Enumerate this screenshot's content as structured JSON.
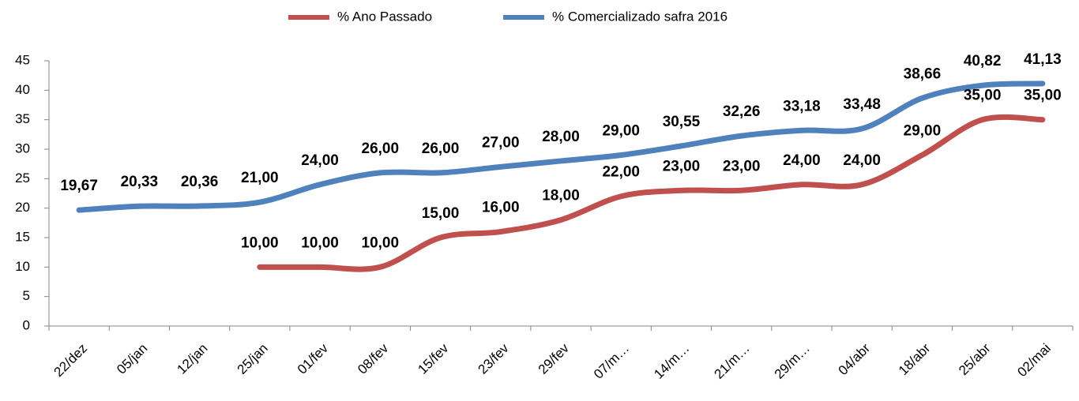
{
  "chart_data": {
    "type": "line",
    "categories": [
      "22/dez",
      "05/jan",
      "12/jan",
      "25/jan",
      "01/fev",
      "08/fev",
      "15/fev",
      "23/fev",
      "29/fev",
      "07/m…",
      "14/m…",
      "21/m…",
      "29/m…",
      "04/abr",
      "18/abr",
      "25/abr",
      "02/mai"
    ],
    "series": [
      {
        "name": "% Ano Passado",
        "color": "#c0504d",
        "values": [
          null,
          null,
          null,
          10,
          10,
          10,
          15,
          16,
          18,
          22,
          23,
          23,
          24,
          24,
          29,
          35,
          35
        ],
        "value_labels": [
          null,
          null,
          null,
          "10,00",
          "10,00",
          "10,00",
          "15,00",
          "16,00",
          "18,00",
          "22,00",
          "23,00",
          "23,00",
          "24,00",
          "24,00",
          "29,00",
          "35,00",
          "35,00"
        ]
      },
      {
        "name": "% Comercializado safra 2016",
        "color": "#4f81bd",
        "values": [
          19.67,
          20.33,
          20.36,
          21,
          24,
          26,
          26,
          27,
          28,
          29,
          30.55,
          32.26,
          33.18,
          33.48,
          38.66,
          40.82,
          41.13
        ],
        "value_labels": [
          "19,67",
          "20,33",
          "20,36",
          "21,00",
          "24,00",
          "26,00",
          "26,00",
          "27,00",
          "28,00",
          "29,00",
          "30,55",
          "32,26",
          "33,18",
          "33,48",
          "38,66",
          "40,82",
          "41,13"
        ]
      }
    ],
    "ylim": [
      0,
      45
    ],
    "yticks": [
      0,
      5,
      10,
      15,
      20,
      25,
      30,
      35,
      40,
      45
    ],
    "legend": "top",
    "smooth": true
  }
}
